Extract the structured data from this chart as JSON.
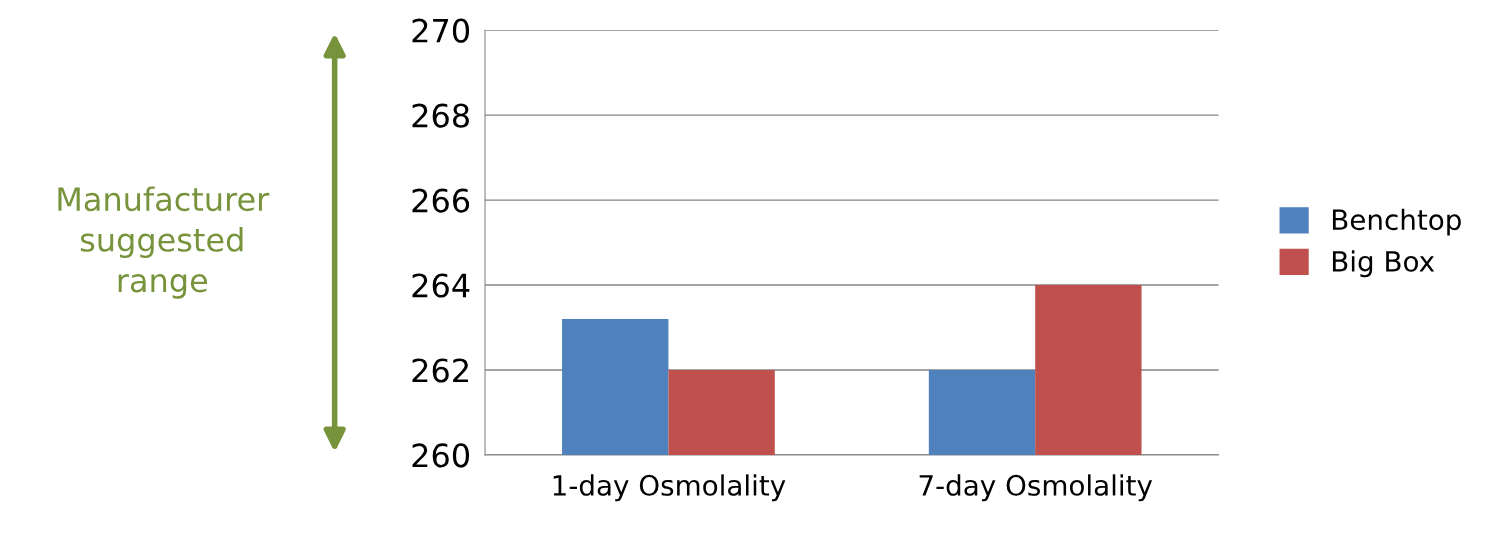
{
  "chart_data": {
    "type": "bar",
    "categories": [
      "1-day Osmolality",
      "7-day Osmolality"
    ],
    "series": [
      {
        "name": "Benchtop",
        "color": "#4f81bd",
        "values": [
          263.2,
          262
        ]
      },
      {
        "name": "Big Box",
        "color": "#c0504d",
        "values": [
          262,
          264
        ]
      }
    ],
    "ylim": [
      260,
      270
    ],
    "yticks": [
      260,
      262,
      264,
      266,
      268,
      270
    ],
    "grid": "y",
    "legend": "right",
    "annotations": [
      "Manufacturer\nsuggested\nrange"
    ]
  }
}
